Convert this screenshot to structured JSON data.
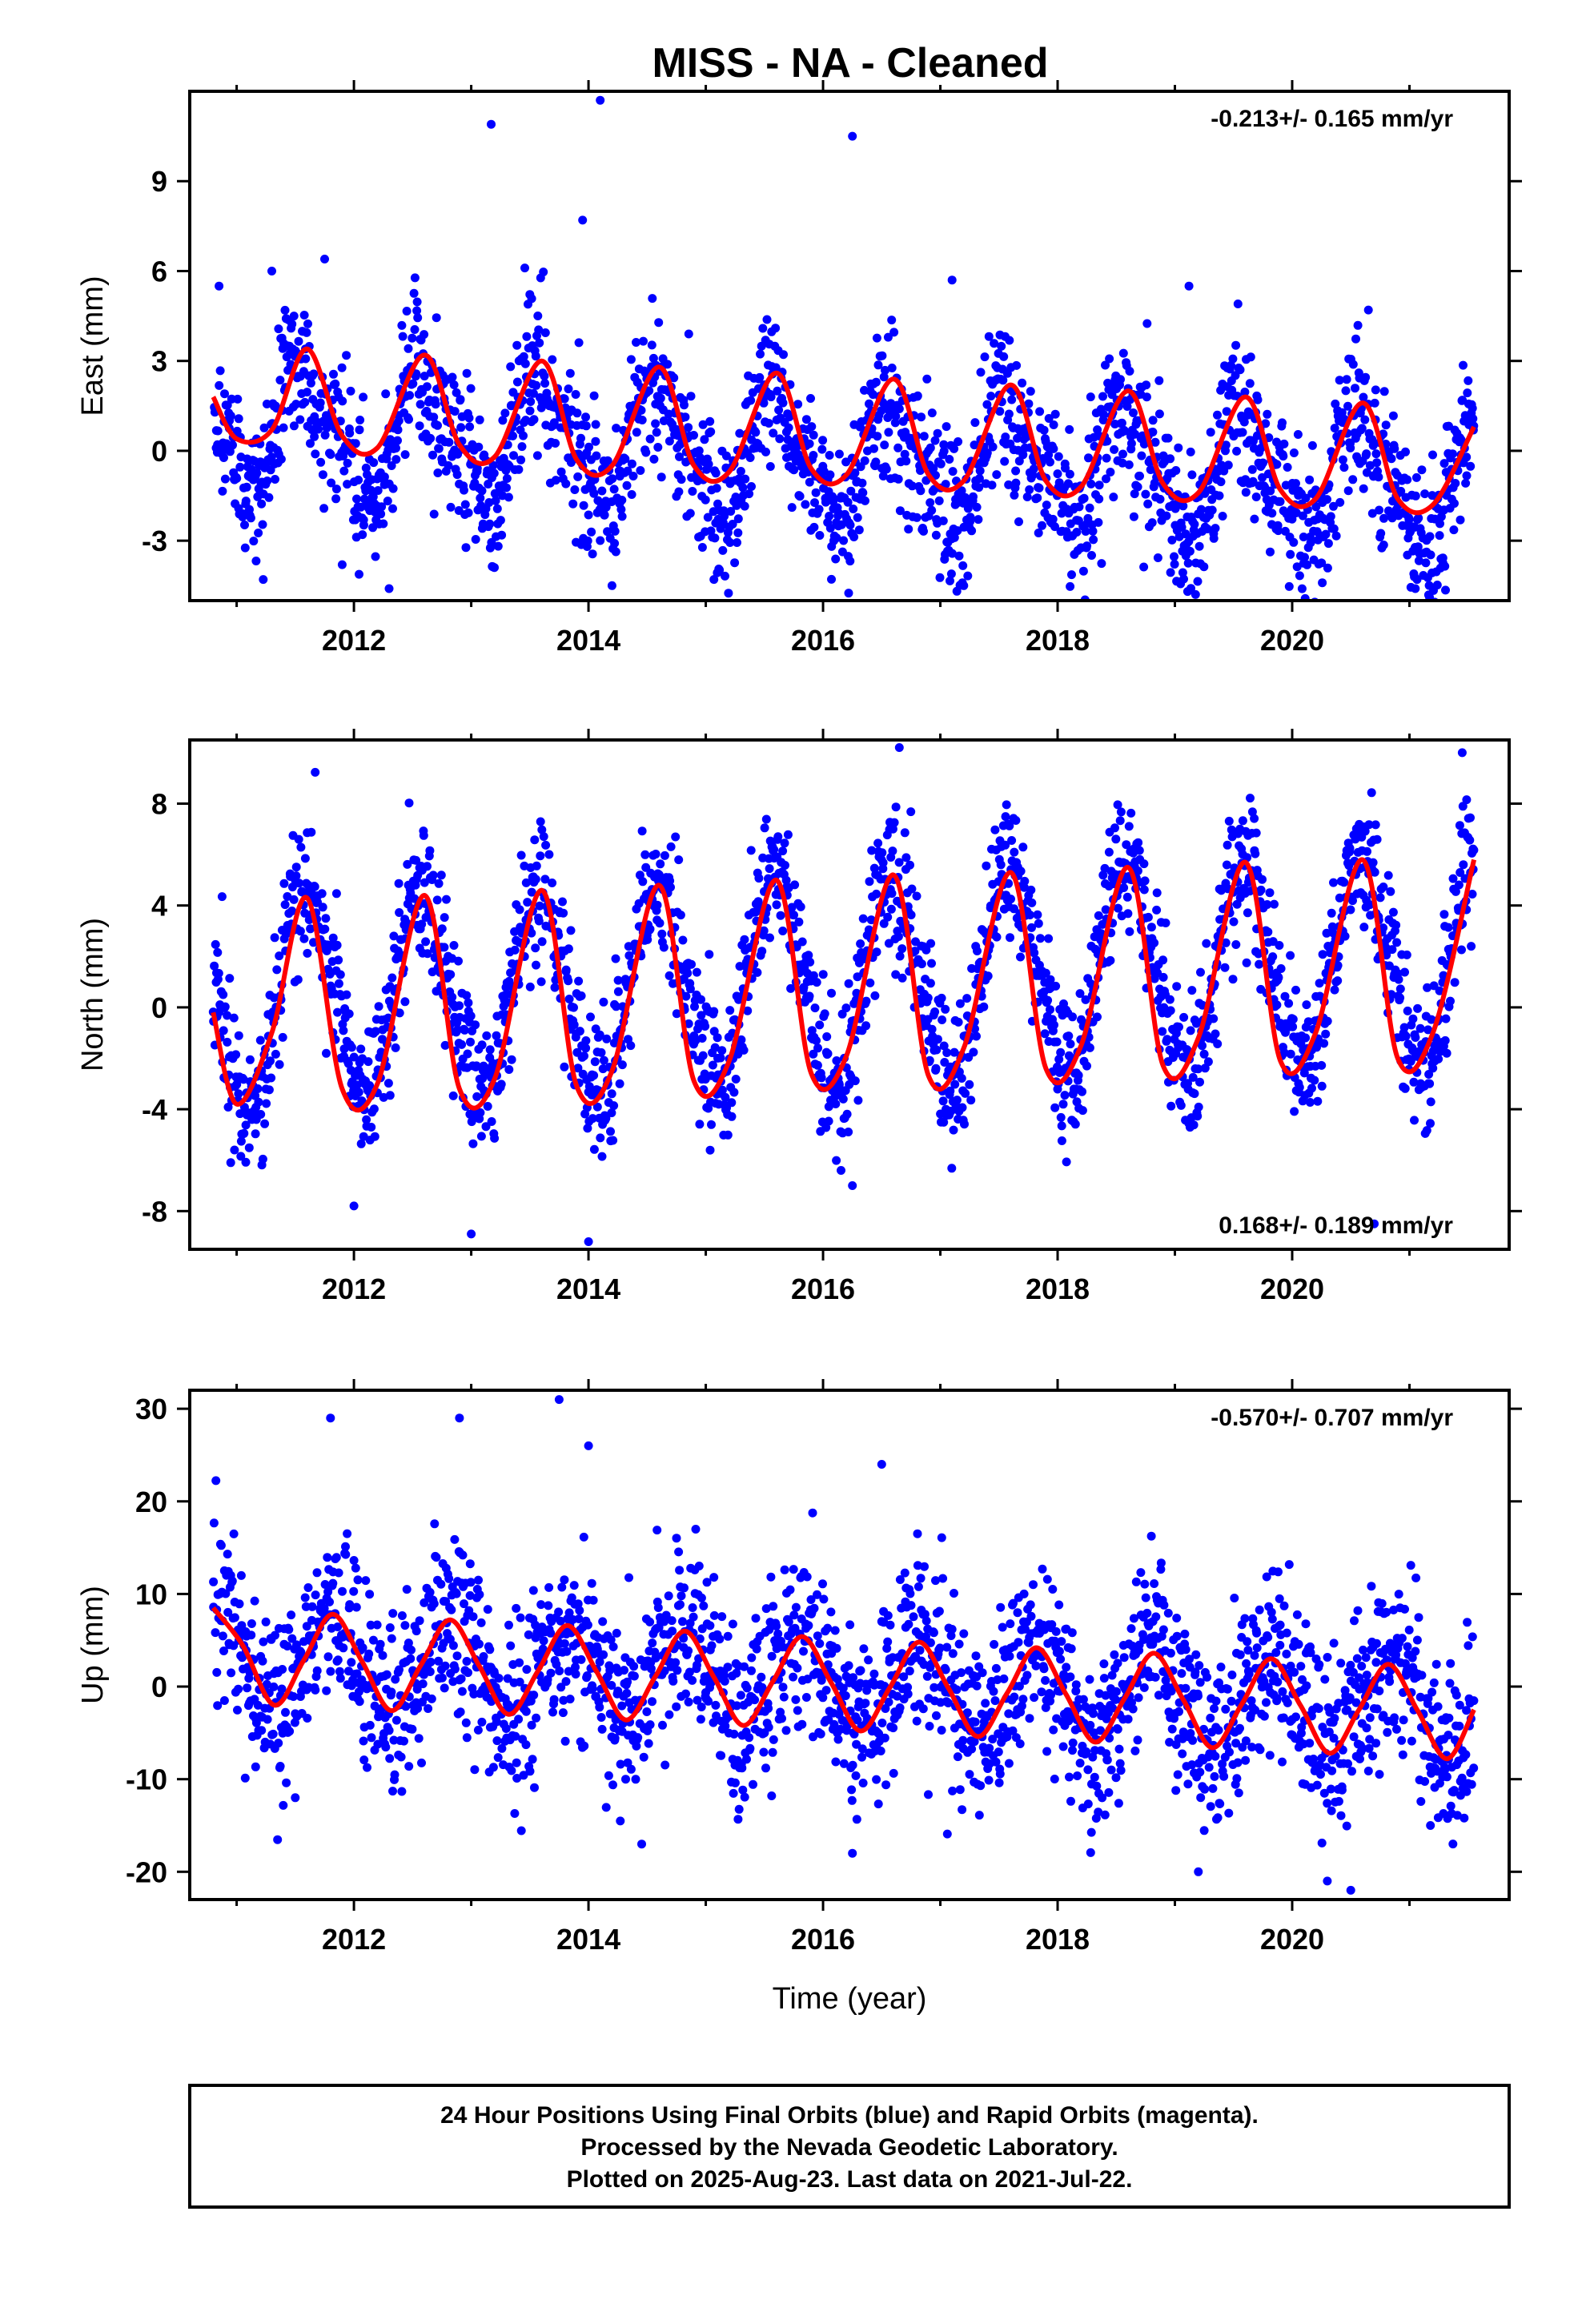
{
  "title": "MISS  - NA - Cleaned",
  "colors": {
    "points": "#0000ff",
    "fit": "#ff0000",
    "frame": "#000000"
  },
  "chart_data": [
    {
      "type": "scatter",
      "ylabel": "East (mm)",
      "xlabel": "",
      "xlim": [
        2010.6,
        2021.85
      ],
      "ylim": [
        -5,
        12
      ],
      "xticks": [
        "2012",
        "2014",
        "2016",
        "2018",
        "2020"
      ],
      "yticks": [
        "-3",
        "0",
        "3",
        "6",
        "9"
      ],
      "rate_label": "-0.213+/- 0.165 mm/yr",
      "rate_position": "top-right",
      "series": [
        {
          "kind": "points",
          "x_start": 2010.8,
          "x_end": 2021.55,
          "offset": 0.9,
          "trend": -0.213,
          "amp1": 1.9,
          "phase1": 0.59,
          "amp2": 0.7,
          "noise": 1.25,
          "outliers": [
            [
              2010.85,
              5.5
            ],
            [
              2011.3,
              6.0
            ],
            [
              2011.75,
              6.4
            ],
            [
              2013.17,
              10.9
            ],
            [
              2013.95,
              7.7
            ],
            [
              2014.1,
              11.7
            ],
            [
              2016.25,
              10.5
            ],
            [
              2017.1,
              5.7
            ],
            [
              2019.12,
              5.5
            ],
            [
              2020.65,
              4.7
            ],
            [
              2014.2,
              -4.5
            ],
            [
              2011.9,
              -3.8
            ],
            [
              2012.3,
              -4.6
            ],
            [
              2017.2,
              -4.5
            ],
            [
              2021.05,
              -4.6
            ]
          ]
        },
        {
          "kind": "fit",
          "x": [
            2010.8,
            2011.0,
            2011.3,
            2011.6,
            2011.9,
            2012.2,
            2012.6,
            2012.9,
            2013.2,
            2013.6,
            2013.9,
            2014.2,
            2014.6,
            2014.9,
            2015.2,
            2015.6,
            2015.9,
            2016.2,
            2016.6,
            2016.9,
            2017.2,
            2017.6,
            2017.9,
            2018.2,
            2018.6,
            2018.9,
            2019.2,
            2019.6,
            2019.9,
            2020.2,
            2020.6,
            2020.9,
            2021.2,
            2021.55
          ],
          "y": [
            1.8,
            0.4,
            0.7,
            3.4,
            0.5,
            0.1,
            3.2,
            0.2,
            -0.2,
            3.0,
            -0.3,
            -0.5,
            2.8,
            -0.5,
            -0.7,
            2.6,
            -0.6,
            -0.8,
            2.4,
            -0.8,
            -1.0,
            2.2,
            -1.0,
            -1.2,
            2.0,
            -1.1,
            -1.4,
            1.8,
            -1.3,
            -1.6,
            1.6,
            -1.6,
            -1.8,
            0.8
          ]
        }
      ]
    },
    {
      "type": "scatter",
      "ylabel": "North (mm)",
      "xlabel": "",
      "xlim": [
        2010.6,
        2021.85
      ],
      "ylim": [
        -9.5,
        10.5
      ],
      "xticks": [
        "2012",
        "2014",
        "2016",
        "2018",
        "2020"
      ],
      "yticks": [
        "-8",
        "-4",
        "0",
        "4",
        "8"
      ],
      "rate_label": "0.168+/- 0.189 mm/yr",
      "rate_position": "bottom-right",
      "series": [
        {
          "kind": "points",
          "x_start": 2010.8,
          "x_end": 2021.55,
          "offset": 0.2,
          "trend": 0.168,
          "amp1": 4.0,
          "phase1": 0.59,
          "amp2": 0.3,
          "noise": 1.4,
          "outliers": [
            [
              2016.65,
              10.2
            ],
            [
              2021.45,
              10.0
            ],
            [
              2014.0,
              -9.2
            ],
            [
              2013.0,
              -8.9
            ],
            [
              2016.25,
              -7.0
            ],
            [
              2012.0,
              -7.8
            ],
            [
              2020.7,
              -8.5
            ]
          ]
        },
        {
          "kind": "fit",
          "x": [
            2010.8,
            2011.0,
            2011.3,
            2011.6,
            2011.9,
            2012.2,
            2012.6,
            2012.9,
            2013.2,
            2013.6,
            2013.9,
            2014.2,
            2014.6,
            2014.9,
            2015.2,
            2015.6,
            2015.9,
            2016.2,
            2016.6,
            2016.9,
            2017.2,
            2017.6,
            2017.9,
            2018.2,
            2018.6,
            2018.9,
            2019.2,
            2019.6,
            2019.9,
            2020.2,
            2020.6,
            2020.9,
            2021.2,
            2021.55
          ],
          "y": [
            -0.2,
            -3.8,
            -1.0,
            4.3,
            -3.2,
            -3.0,
            4.4,
            -3.2,
            -2.8,
            4.6,
            -3.1,
            -2.5,
            4.8,
            -2.9,
            -2.1,
            5.0,
            -2.6,
            -1.9,
            5.2,
            -2.7,
            -1.6,
            5.3,
            -2.4,
            -1.5,
            5.5,
            -2.3,
            -1.2,
            5.7,
            -2.1,
            -1.0,
            5.8,
            -2.0,
            -1.0,
            5.8
          ]
        }
      ]
    },
    {
      "type": "scatter",
      "ylabel": "Up (mm)",
      "xlabel": "Time (year)",
      "xlim": [
        2010.6,
        2021.85
      ],
      "ylim": [
        -23,
        32
      ],
      "xticks": [
        "2012",
        "2014",
        "2016",
        "2018",
        "2020"
      ],
      "yticks": [
        "-20",
        "-10",
        "0",
        "10",
        "20",
        "30"
      ],
      "rate_label": "-0.570+/- 0.707 mm/yr",
      "rate_position": "top-right",
      "series": [
        {
          "kind": "points",
          "x_start": 2010.8,
          "x_end": 2021.55,
          "offset": 3.5,
          "trend": -0.57,
          "amp1": 5.0,
          "phase1": 0.82,
          "amp2": 0.0,
          "noise": 4.8,
          "outliers": [
            [
              2013.75,
              31.0
            ],
            [
              2011.8,
              29.0
            ],
            [
              2012.9,
              29.0
            ],
            [
              2014.0,
              26.0
            ],
            [
              2016.5,
              24.0
            ],
            [
              2016.25,
              -18.0
            ],
            [
              2020.3,
              -21.0
            ],
            [
              2020.5,
              -22.0
            ],
            [
              2019.2,
              -20.0
            ],
            [
              2011.5,
              -12.0
            ]
          ]
        },
        {
          "kind": "fit",
          "x": [
            2010.8,
            2011.05,
            2011.32,
            2011.57,
            2011.82,
            2012.07,
            2012.32,
            2012.57,
            2012.82,
            2013.07,
            2013.32,
            2013.57,
            2013.82,
            2014.07,
            2014.32,
            2014.57,
            2014.82,
            2015.07,
            2015.32,
            2015.57,
            2015.82,
            2016.07,
            2016.32,
            2016.57,
            2016.82,
            2017.07,
            2017.32,
            2017.57,
            2017.82,
            2018.07,
            2018.32,
            2018.57,
            2018.82,
            2019.07,
            2019.32,
            2019.57,
            2019.82,
            2020.07,
            2020.32,
            2020.57,
            2020.82,
            2021.07,
            2021.32,
            2021.55
          ],
          "y": [
            8.5,
            4.5,
            -2.0,
            2.8,
            7.8,
            2.7,
            -2.6,
            2.3,
            7.2,
            2.2,
            -3.0,
            1.7,
            6.6,
            1.6,
            -3.6,
            1.1,
            6.0,
            1.0,
            -4.2,
            0.5,
            5.4,
            0.4,
            -4.8,
            -0.1,
            4.8,
            -0.2,
            -5.4,
            -0.7,
            4.2,
            -0.8,
            -6.0,
            -1.3,
            3.6,
            -1.4,
            -6.6,
            -1.9,
            3.0,
            -2.0,
            -7.2,
            -2.5,
            2.4,
            -2.6,
            -7.8,
            -2.5
          ]
        }
      ]
    }
  ],
  "footer": {
    "line1": "24 Hour Positions Using Final Orbits (blue) and Rapid Orbits (magenta).",
    "line2": "Processed by the Nevada Geodetic Laboratory.",
    "line3": "Plotted on 2025-Aug-23. Last data on 2021-Jul-22."
  }
}
